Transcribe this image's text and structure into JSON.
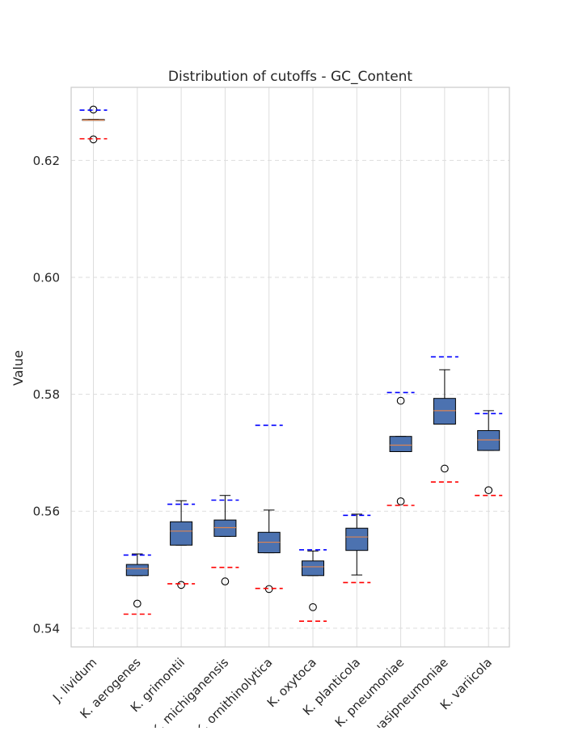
{
  "chart_data": {
    "type": "box",
    "title": "Distribution of cutoffs - GC_Content",
    "xlabel": "",
    "ylabel": "Value",
    "ylim": [
      0.5368,
      0.6325
    ],
    "yticks": [
      0.54,
      0.56,
      0.58,
      0.6,
      0.62
    ],
    "ytick_labels": [
      "0.54",
      "0.56",
      "0.58",
      "0.60",
      "0.62"
    ],
    "grid": true,
    "categories": [
      "J. lividum",
      "K. aerogenes",
      "K. grimontii",
      "K. michiganensis",
      "K. ornithinolytica",
      "K. oxytoca",
      "K. planticola",
      "K. pneumoniae",
      "K. quasipneumoniae",
      "K. variicola"
    ],
    "boxes": [
      {
        "q1": 0.6269,
        "median": 0.6269,
        "q3": 0.627,
        "whislo": 0.6269,
        "whishi": 0.627,
        "fliers": [
          0.6236,
          0.6287
        ]
      },
      {
        "q1": 0.549,
        "median": 0.5502,
        "q3": 0.5509,
        "whislo": 0.549,
        "whishi": 0.5527,
        "fliers": [
          0.5442
        ]
      },
      {
        "q1": 0.5542,
        "median": 0.5566,
        "q3": 0.5582,
        "whislo": 0.5542,
        "whishi": 0.5618,
        "fliers": [
          0.5474
        ]
      },
      {
        "q1": 0.5557,
        "median": 0.5572,
        "q3": 0.5585,
        "whislo": 0.5557,
        "whishi": 0.5627,
        "fliers": [
          0.548
        ]
      },
      {
        "q1": 0.5529,
        "median": 0.5547,
        "q3": 0.5564,
        "whislo": 0.5529,
        "whishi": 0.5602,
        "fliers": [
          0.5467
        ]
      },
      {
        "q1": 0.549,
        "median": 0.5505,
        "q3": 0.5515,
        "whislo": 0.549,
        "whishi": 0.5532,
        "fliers": [
          0.5436
        ]
      },
      {
        "q1": 0.5533,
        "median": 0.5556,
        "q3": 0.5571,
        "whislo": 0.5491,
        "whishi": 0.5595,
        "fliers": []
      },
      {
        "q1": 0.5702,
        "median": 0.5713,
        "q3": 0.5728,
        "whislo": 0.5702,
        "whishi": 0.5728,
        "fliers": [
          0.5617,
          0.5789
        ]
      },
      {
        "q1": 0.5749,
        "median": 0.5772,
        "q3": 0.5793,
        "whislo": 0.5749,
        "whishi": 0.5842,
        "fliers": [
          0.5673
        ]
      },
      {
        "q1": 0.5704,
        "median": 0.5722,
        "q3": 0.5738,
        "whislo": 0.5704,
        "whishi": 0.5772,
        "fliers": [
          0.5636
        ]
      }
    ],
    "upper_cutoffs": [
      0.6286,
      0.5525,
      0.5612,
      0.5619,
      0.5747,
      0.5534,
      0.5593,
      0.5803,
      0.5864,
      0.5767
    ],
    "lower_cutoffs": [
      0.6237,
      0.5424,
      0.5476,
      0.5504,
      0.5468,
      0.5412,
      0.5478,
      0.561,
      0.565,
      0.5627
    ],
    "colors": {
      "box_fill": "#4c72b0",
      "median": "#dd8452",
      "upper_cutoff": "#0000ff",
      "lower_cutoff": "#ff0000",
      "grid": "#dddddd",
      "spine": "#cccccc",
      "text": "#262626"
    }
  }
}
